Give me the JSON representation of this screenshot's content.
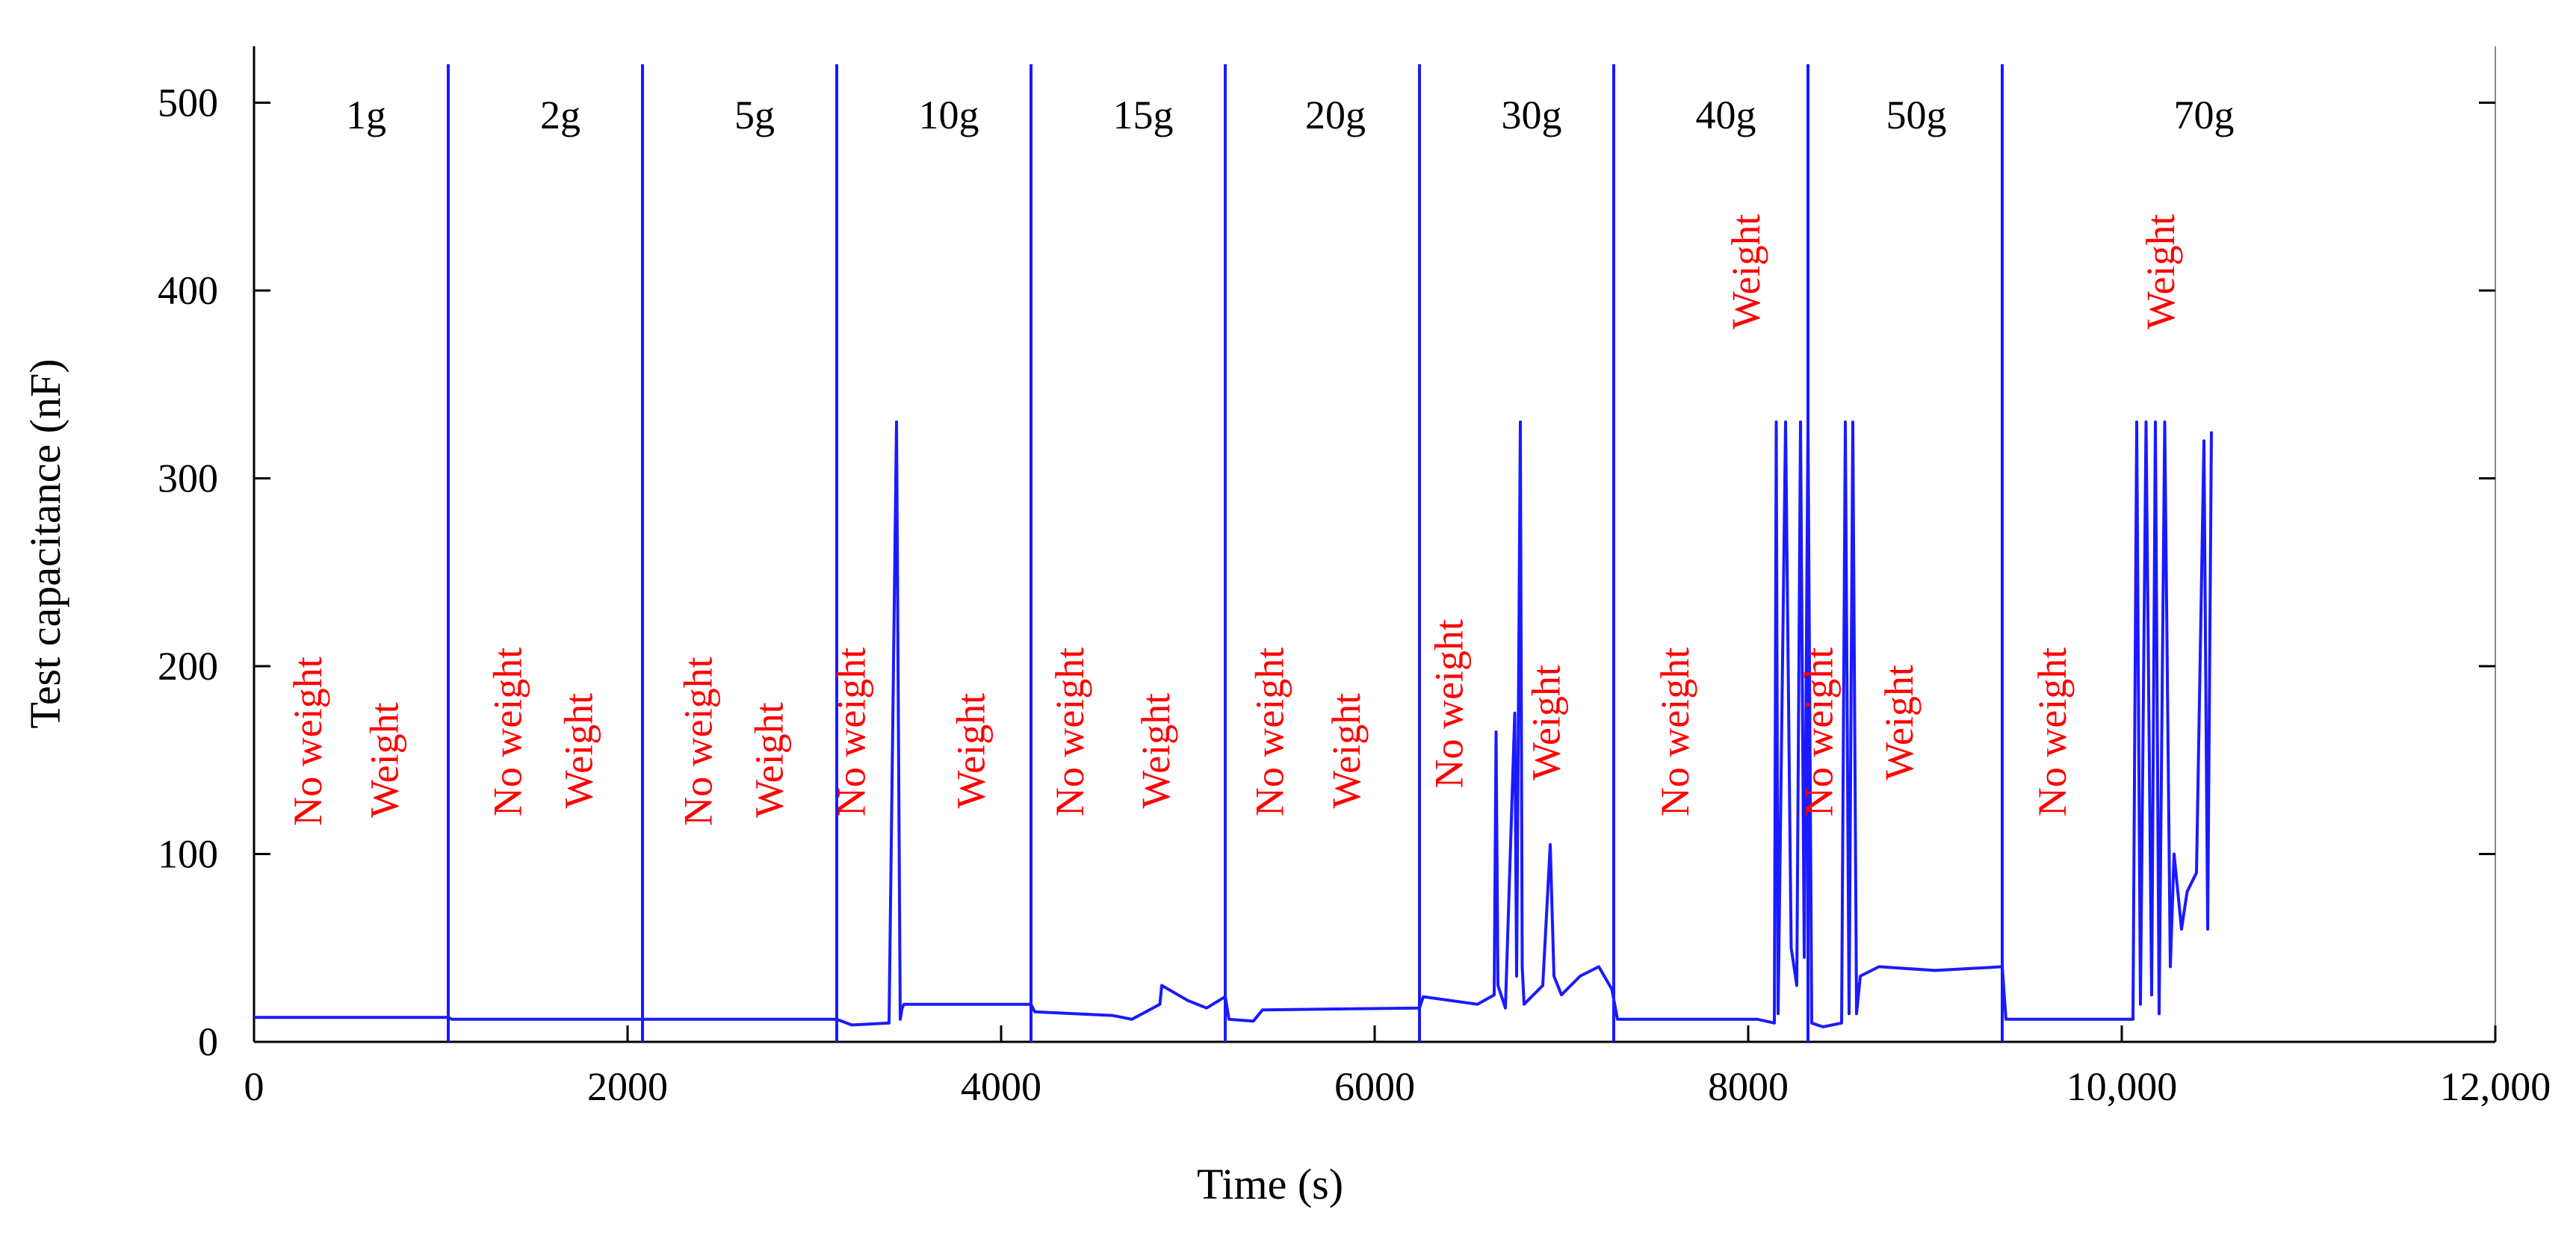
{
  "chart_data": {
    "type": "line",
    "title": "",
    "xlabel": "Time (s)",
    "ylabel": "Test capacitance (nF)",
    "xlim": [
      0,
      12000
    ],
    "ylim": [
      0,
      530
    ],
    "x_ticks": [
      0,
      2000,
      4000,
      6000,
      8000,
      10000,
      12000
    ],
    "x_tick_labels": [
      "0",
      "2000",
      "4000",
      "6000",
      "8000",
      "10,000",
      "12,000"
    ],
    "y_ticks": [
      0,
      100,
      200,
      300,
      400,
      500
    ],
    "y_tick_labels": [
      "0",
      "100",
      "200",
      "300",
      "400",
      "500"
    ],
    "line_color": "#1a1aff",
    "label_color": "#ff0000",
    "segment_boundaries": [
      1040,
      2080,
      3120,
      4160,
      5200,
      6240,
      7280,
      8320,
      9360
    ],
    "segments": [
      {
        "label": "1g",
        "x": 600
      },
      {
        "label": "2g",
        "x": 1640
      },
      {
        "label": "5g",
        "x": 2680
      },
      {
        "label": "10g",
        "x": 3720
      },
      {
        "label": "15g",
        "x": 4760
      },
      {
        "label": "20g",
        "x": 5790
      },
      {
        "label": "30g",
        "x": 6840
      },
      {
        "label": "40g",
        "x": 7880
      },
      {
        "label": "50g",
        "x": 8900
      },
      {
        "label": "70g",
        "x": 10440
      }
    ],
    "annotations": [
      {
        "text": "No weight",
        "x": 360,
        "y": 160
      },
      {
        "text": "Weight",
        "x": 770,
        "y": 150
      },
      {
        "text": "No weight",
        "x": 1430,
        "y": 165
      },
      {
        "text": "Weight",
        "x": 1810,
        "y": 155
      },
      {
        "text": "No weight",
        "x": 2450,
        "y": 160
      },
      {
        "text": "Weight",
        "x": 2830,
        "y": 150
      },
      {
        "text": "No weight",
        "x": 3270,
        "y": 165
      },
      {
        "text": "Weight",
        "x": 3910,
        "y": 155
      },
      {
        "text": "No weight",
        "x": 4440,
        "y": 165
      },
      {
        "text": "Weight",
        "x": 4900,
        "y": 155
      },
      {
        "text": "No weight",
        "x": 5510,
        "y": 165
      },
      {
        "text": "Weight",
        "x": 5920,
        "y": 155
      },
      {
        "text": "No weight",
        "x": 6470,
        "y": 180
      },
      {
        "text": "Weight",
        "x": 6990,
        "y": 170
      },
      {
        "text": "No weight",
        "x": 7680,
        "y": 165
      },
      {
        "text": "Weight",
        "x": 8060,
        "y": 410
      },
      {
        "text": "No weight",
        "x": 8450,
        "y": 165
      },
      {
        "text": "Weight",
        "x": 8880,
        "y": 170
      },
      {
        "text": "No weight",
        "x": 9700,
        "y": 165
      },
      {
        "text": "Weight",
        "x": 10280,
        "y": 410
      }
    ],
    "series": [
      {
        "name": "Test capacitance",
        "x": [
          0,
          1040,
          1060,
          1250,
          1260,
          2080,
          2090,
          2350,
          2520,
          3120,
          3200,
          3400,
          3440,
          3460,
          3470,
          3480,
          3500,
          4160,
          4180,
          4600,
          4700,
          4850,
          4860,
          5000,
          5100,
          5200,
          5220,
          5350,
          5400,
          6240,
          6260,
          6550,
          6640,
          6650,
          6660,
          6700,
          6750,
          6760,
          6780,
          6790,
          6800,
          6900,
          6940,
          6960,
          7000,
          7100,
          7200,
          7270,
          7300,
          8050,
          8140,
          8150,
          8160,
          8200,
          8230,
          8260,
          8280,
          8300,
          8320,
          8340,
          8400,
          8500,
          8520,
          8540,
          8560,
          8580,
          8600,
          8700,
          9000,
          9360,
          9380,
          10030,
          10060,
          10080,
          10100,
          10130,
          10160,
          10180,
          10200,
          10230,
          10260,
          10280,
          10320,
          10350,
          10400,
          10440,
          10460,
          10480
        ],
        "values": [
          13,
          13,
          12,
          12,
          12,
          12,
          12,
          12,
          12,
          12,
          9,
          10,
          330,
          12,
          18,
          20,
          20,
          20,
          16,
          14,
          12,
          20,
          30,
          22,
          18,
          24,
          12,
          11,
          17,
          18,
          24,
          20,
          25,
          165,
          30,
          18,
          175,
          35,
          330,
          40,
          20,
          30,
          105,
          35,
          25,
          35,
          40,
          28,
          12,
          12,
          10,
          330,
          15,
          330,
          50,
          30,
          330,
          45,
          330,
          10,
          8,
          10,
          330,
          15,
          330,
          15,
          35,
          40,
          38,
          40,
          12,
          12,
          12,
          330,
          20,
          330,
          25,
          330,
          15,
          330,
          40,
          100,
          60,
          80,
          90,
          320,
          60,
          325
        ]
      }
    ]
  }
}
